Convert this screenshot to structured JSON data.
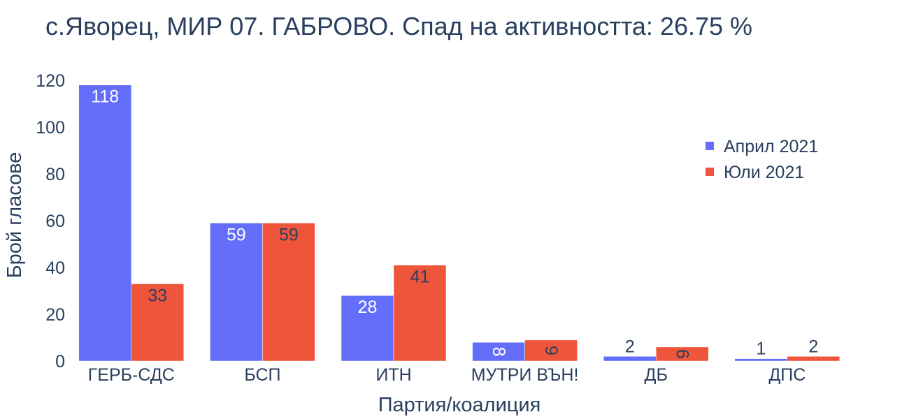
{
  "chart_data": {
    "type": "bar",
    "title": "с.Яворец, МИР 07. ГАБРОВО. Спад на активността: 26.75 %",
    "xlabel": "Партия/коалиция",
    "ylabel": "Брой гласове",
    "categories": [
      "ГЕРБ-СДС",
      "БСП",
      "ИТН",
      "МУТРИ ВЪН!",
      "ДБ",
      "ДПС"
    ],
    "series": [
      {
        "name": "Април 2021",
        "color": "#636efa",
        "values": [
          118,
          59,
          28,
          8,
          2,
          1
        ]
      },
      {
        "name": "Юли 2021",
        "color": "#ef553b",
        "values": [
          33,
          59,
          41,
          9,
          6,
          2
        ]
      }
    ],
    "ylim": [
      0,
      124
    ],
    "yticks": [
      0,
      20,
      40,
      60,
      80,
      100,
      120
    ],
    "grid": false,
    "legend_position": "top-right"
  }
}
